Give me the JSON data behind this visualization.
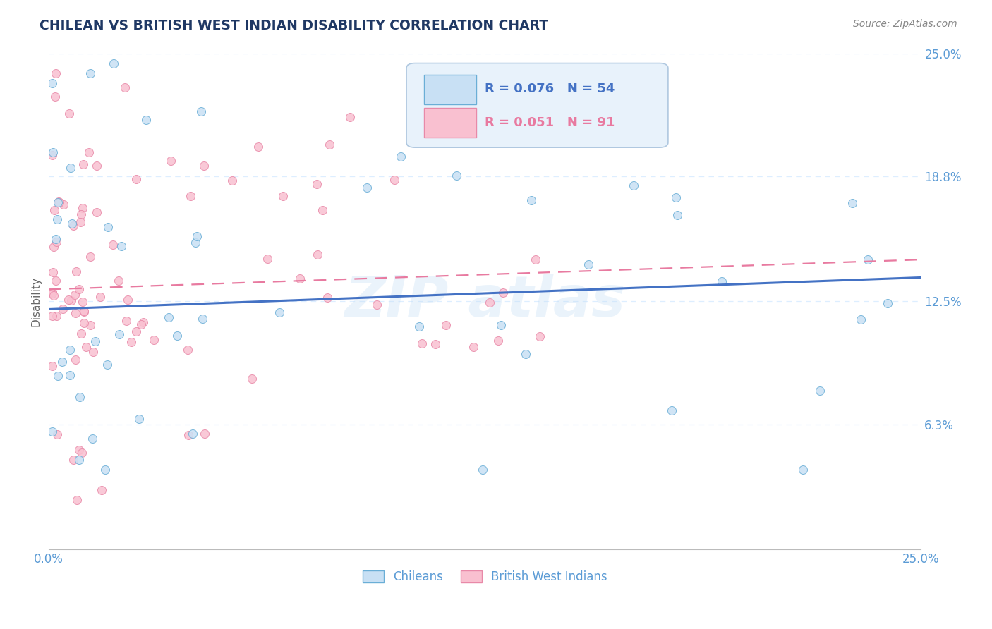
{
  "title": "CHILEAN VS BRITISH WEST INDIAN DISABILITY CORRELATION CHART",
  "source_text": "Source: ZipAtlas.com",
  "ylabel": "Disability",
  "xlim": [
    0.0,
    0.25
  ],
  "ylim": [
    0.0,
    0.25
  ],
  "xtick_labels": [
    "0.0%",
    "25.0%"
  ],
  "xtick_positions": [
    0.0,
    0.25
  ],
  "ytick_labels": [
    "25.0%",
    "18.8%",
    "12.5%",
    "6.3%"
  ],
  "ytick_positions": [
    0.25,
    0.188,
    0.125,
    0.063
  ],
  "color_chilean_fill": "#c8e0f4",
  "color_chilean_edge": "#6aaed6",
  "color_bwi_fill": "#f9c0d0",
  "color_bwi_edge": "#e889a8",
  "color_chilean_line": "#4472c4",
  "color_bwi_line": "#e87aa0",
  "title_color": "#1f3864",
  "source_color": "#888888",
  "ylabel_color": "#666666",
  "tick_color": "#5b9bd5",
  "grid_color": "#ddeeff",
  "background_color": "#ffffff",
  "watermark_color": "#c5dff5",
  "legend_box_color": "#e8f2fb",
  "legend_border_color": "#b0c8e0",
  "trend_blue_y0": 0.121,
  "trend_blue_y1": 0.137,
  "trend_pink_y0": 0.131,
  "trend_pink_y1": 0.146
}
